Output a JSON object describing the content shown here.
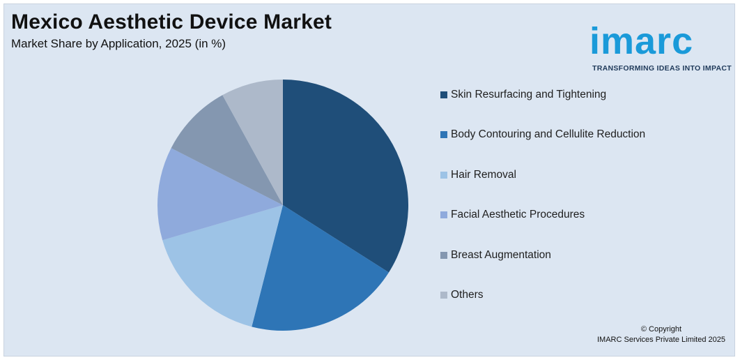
{
  "header": {
    "title": "Mexico Aesthetic Device Market",
    "subtitle": "Market Share by Application, 2025 (in %)"
  },
  "logo": {
    "word": "imarc",
    "tagline": "TRANSFORMING IDEAS INTO IMPACT",
    "color": "#1a9ad9"
  },
  "chart_data": {
    "type": "pie",
    "title": "Mexico Aesthetic Device Market",
    "subtitle": "Market Share by Application, 2025 (in %)",
    "categories": [
      "Skin Resurfacing and Tightening",
      "Body Contouring and Cellulite Reduction",
      "Hair Removal",
      "Facial Aesthetic Procedures",
      "Breast Augmentation",
      "Others"
    ],
    "values": [
      34,
      20,
      16.5,
      12,
      9.5,
      8
    ],
    "colors": [
      "#1f4e79",
      "#2e75b6",
      "#9dc3e6",
      "#8faadc",
      "#8497b0",
      "#adb9ca"
    ],
    "legend_position": "right",
    "start_angle_deg": 0,
    "direction": "clockwise"
  },
  "footer": {
    "copyright_line1": "© Copyright",
    "copyright_line2": "IMARC Services Private Limited 2025"
  }
}
